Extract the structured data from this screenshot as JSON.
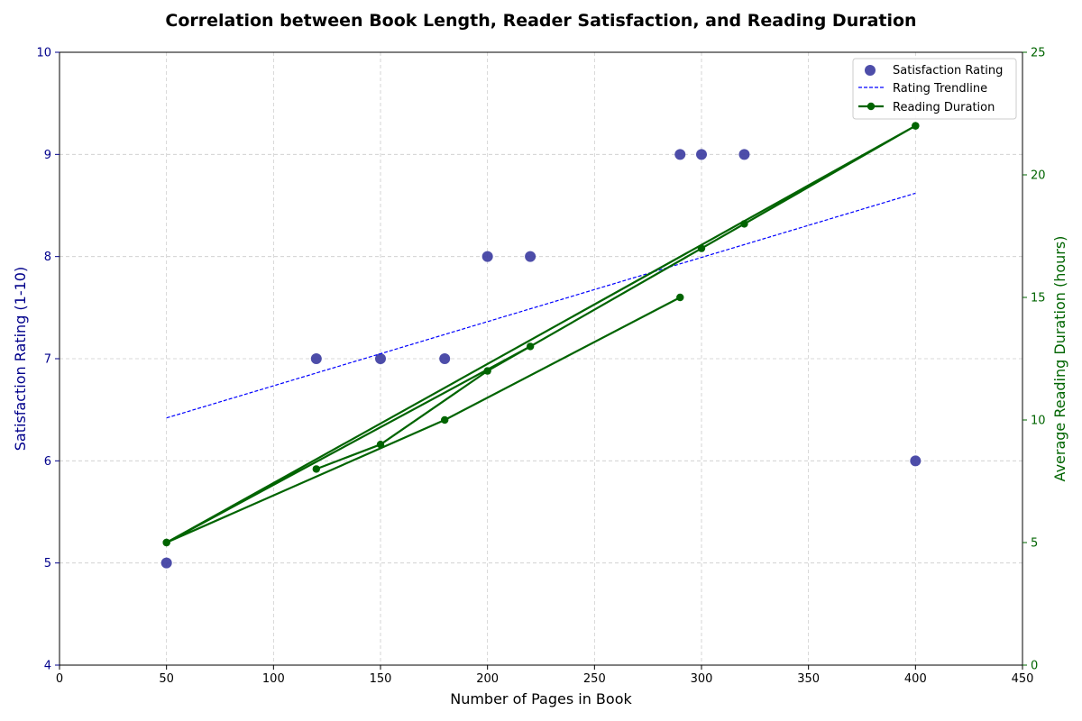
{
  "chart_data": {
    "type": "scatter",
    "title": "Correlation between Book Length, Reader Satisfaction, and Reading Duration",
    "xlabel": "Number of Pages in Book",
    "ylabel_left": "Satisfaction Rating (1-10)",
    "ylabel_right": "Average Reading Duration (hours)",
    "xlim": [
      0,
      450
    ],
    "ylim_left": [
      4,
      10
    ],
    "ylim_right": [
      0,
      25
    ],
    "x_ticks": [
      0,
      50,
      100,
      150,
      200,
      250,
      300,
      350,
      400,
      450
    ],
    "y_left_ticks": [
      4,
      5,
      6,
      7,
      8,
      9,
      10
    ],
    "y_right_ticks": [
      0,
      5,
      10,
      15,
      20,
      25
    ],
    "grid": true,
    "legend_position": "top-right",
    "colors": {
      "left_axis": "#00008b",
      "right_axis": "#006400",
      "scatter": "#3a3aa0",
      "trendline": "#0000ff",
      "duration": "#006400",
      "grid": "#cccccc"
    },
    "series": [
      {
        "name": "Satisfaction Rating",
        "kind": "scatter",
        "axis": "left",
        "x": [
          50,
          120,
          150,
          180,
          200,
          220,
          290,
          300,
          320,
          400
        ],
        "y": [
          5,
          7,
          7,
          7,
          8,
          8,
          9,
          9,
          9,
          6
        ]
      },
      {
        "name": "Rating Trendline",
        "kind": "dashed-line",
        "axis": "left",
        "x": [
          50,
          400
        ],
        "y": [
          6.42,
          8.62
        ]
      },
      {
        "name": "Reading Duration",
        "kind": "line-markers",
        "axis": "right",
        "x": [
          120,
          150,
          200,
          300,
          400,
          50,
          220,
          320,
          400,
          50,
          180,
          290
        ],
        "y": [
          8,
          9,
          12,
          17,
          22,
          5,
          13,
          18,
          22,
          5,
          10,
          15
        ]
      }
    ]
  }
}
